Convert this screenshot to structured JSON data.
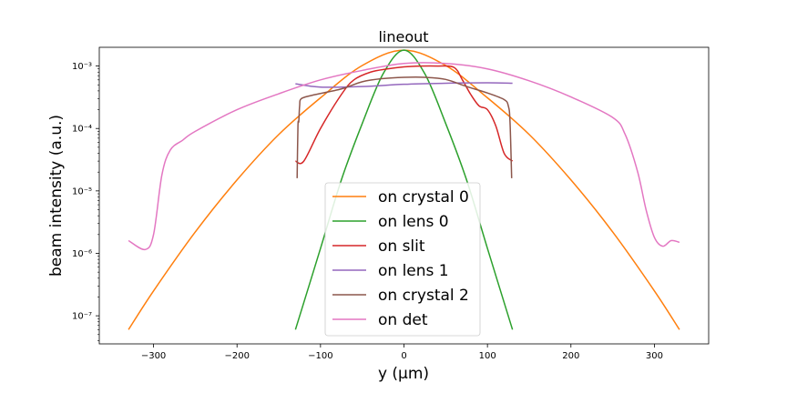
{
  "chart_data": {
    "type": "line",
    "title": "lineout",
    "xlabel": "y (μm)",
    "ylabel": "beam intensity (a.u.)",
    "xlim": [
      -365,
      365
    ],
    "ylim_log10": [
      -7.45,
      -2.7
    ],
    "yscale": "log",
    "grid": false,
    "legend_position": "lower center",
    "x_ticks": [
      -300,
      -200,
      -100,
      0,
      100,
      200,
      300
    ],
    "x_tick_labels": [
      "−300",
      "−200",
      "−100",
      "0",
      "100",
      "200",
      "300"
    ],
    "y_ticks_log10": [
      -7,
      -6,
      -5,
      -4,
      -3
    ],
    "y_tick_labels": [
      "10⁻⁷",
      "10⁻⁶",
      "10⁻⁵",
      "10⁻⁴",
      "10⁻³"
    ],
    "series": [
      {
        "name": "on crystal 0",
        "color": "#ff7f0e",
        "x": [
          -330,
          -300,
          -250,
          -200,
          -150,
          -100,
          -50,
          0,
          50,
          100,
          150,
          200,
          250,
          300,
          330
        ],
        "y": [
          6e-08,
          2.5e-07,
          2.2e-06,
          1.5e-05,
          8e-05,
          0.00031,
          0.00102,
          0.0018,
          0.00102,
          0.00031,
          8e-05,
          1.5e-05,
          2.2e-06,
          2.5e-07,
          6e-08
        ]
      },
      {
        "name": "on lens 0",
        "color": "#2ca02c",
        "x": [
          -130,
          -100,
          -75,
          -50,
          -25,
          0,
          25,
          50,
          75,
          100,
          130
        ],
        "y": [
          6e-08,
          1.2e-06,
          1.5e-05,
          0.00012,
          0.00075,
          0.0018,
          0.00075,
          0.00012,
          1.5e-05,
          1.2e-06,
          6e-08
        ]
      },
      {
        "name": "on slit",
        "color": "#d62728",
        "x": [
          -130,
          -120,
          -100,
          -75,
          -60,
          -40,
          -20,
          0,
          20,
          40,
          60,
          70,
          80,
          90,
          100,
          110,
          120,
          130
        ],
        "y": [
          3e-05,
          3e-05,
          0.0001,
          0.00035,
          0.0006,
          0.0008,
          0.0009,
          0.00097,
          0.001,
          0.001,
          0.00095,
          0.0006,
          0.00035,
          0.00023,
          0.0002,
          0.00011,
          4e-05,
          3e-05
        ]
      },
      {
        "name": "on lens 1",
        "color": "#9467bd",
        "x": [
          -130,
          -100,
          -50,
          0,
          50,
          100,
          130
        ],
        "y": [
          0.00052,
          0.00046,
          0.00047,
          0.00051,
          0.00053,
          0.00054,
          0.00053
        ]
      },
      {
        "name": "on crystal 2",
        "color": "#8c564b",
        "x": [
          -128,
          -127,
          -126,
          -125,
          -123,
          -110,
          -75,
          -50,
          -25,
          0,
          25,
          50,
          75,
          100,
          120,
          125,
          127,
          129
        ],
        "y": [
          1.6e-05,
          0.00011,
          0.00013,
          0.00023,
          0.0003,
          0.00034,
          0.00043,
          0.00056,
          0.00063,
          0.00066,
          0.00066,
          0.00061,
          0.00047,
          0.00037,
          0.00029,
          0.00023,
          0.00013,
          1.6e-05
        ]
      },
      {
        "name": "on det",
        "color": "#e377c2",
        "x": [
          -330,
          -310,
          -300,
          -290,
          -280,
          -265,
          -250,
          -200,
          -150,
          -100,
          -50,
          0,
          50,
          100,
          150,
          200,
          250,
          265,
          280,
          290,
          300,
          310,
          320,
          330
        ],
        "y": [
          1.6e-06,
          1.15e-06,
          2e-06,
          1.8e-05,
          4.5e-05,
          6.5e-05,
          9e-05,
          0.0002,
          0.00036,
          0.0006,
          0.00085,
          0.0011,
          0.0011,
          0.0009,
          0.00058,
          0.00032,
          0.00015,
          8e-05,
          2e-05,
          5e-06,
          1.8e-06,
          1.3e-06,
          1.6e-06,
          1.5e-06
        ]
      }
    ]
  }
}
